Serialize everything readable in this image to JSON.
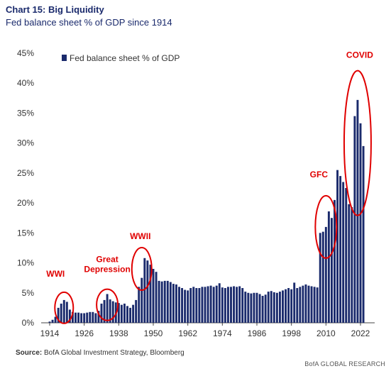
{
  "header": {
    "title": "Chart 15: Big Liquidity",
    "subtitle": "Fed balance sheet % of GDP since 1914"
  },
  "source": {
    "label": "Source:",
    "text": "BofA Global Investment Strategy, Bloomberg"
  },
  "footer": "BofA GLOBAL RESEARCH",
  "colors": {
    "bar": "#1a2a6c",
    "annotation": "#e00000"
  },
  "chart_data": {
    "type": "bar",
    "title": "",
    "xlabel": "",
    "ylabel": "",
    "ylim": [
      0,
      45
    ],
    "yticks": [
      "0%",
      "5%",
      "10%",
      "15%",
      "20%",
      "25%",
      "30%",
      "35%",
      "40%",
      "45%"
    ],
    "xticks": [
      "1914",
      "1926",
      "1938",
      "1950",
      "1962",
      "1974",
      "1986",
      "1998",
      "2010",
      "2022"
    ],
    "legend": {
      "label": "Fed balance sheet % of GDP",
      "position": "top-left"
    },
    "grid": false,
    "series": [
      {
        "name": "Fed balance sheet % of GDP",
        "x": [
          1914,
          1915,
          1916,
          1917,
          1918,
          1919,
          1920,
          1921,
          1922,
          1923,
          1924,
          1925,
          1926,
          1927,
          1928,
          1929,
          1930,
          1931,
          1932,
          1933,
          1934,
          1935,
          1936,
          1937,
          1938,
          1939,
          1940,
          1941,
          1942,
          1943,
          1944,
          1945,
          1946,
          1947,
          1948,
          1949,
          1950,
          1951,
          1952,
          1953,
          1954,
          1955,
          1956,
          1957,
          1958,
          1959,
          1960,
          1961,
          1962,
          1963,
          1964,
          1965,
          1966,
          1967,
          1968,
          1969,
          1970,
          1971,
          1972,
          1973,
          1974,
          1975,
          1976,
          1977,
          1978,
          1979,
          1980,
          1981,
          1982,
          1983,
          1984,
          1985,
          1986,
          1987,
          1988,
          1989,
          1990,
          1991,
          1992,
          1993,
          1994,
          1995,
          1996,
          1997,
          1998,
          1999,
          2000,
          2001,
          2002,
          2003,
          2004,
          2005,
          2006,
          2007,
          2008,
          2009,
          2010,
          2011,
          2012,
          2013,
          2014,
          2015,
          2016,
          2017,
          2018,
          2019,
          2020,
          2021,
          2022,
          2023
        ],
        "values": [
          0.2,
          0.5,
          1.0,
          2.5,
          3.2,
          3.8,
          3.5,
          2.2,
          1.8,
          1.7,
          1.7,
          1.6,
          1.6,
          1.7,
          1.8,
          1.8,
          1.6,
          2.0,
          3.2,
          3.8,
          4.8,
          3.9,
          3.6,
          3.4,
          3.3,
          3.0,
          3.2,
          2.8,
          2.5,
          3.0,
          3.8,
          6.0,
          7.5,
          10.8,
          10.4,
          9.7,
          9.0,
          8.5,
          7.0,
          6.9,
          7.0,
          7.0,
          6.8,
          6.5,
          6.4,
          6.0,
          5.8,
          5.5,
          5.4,
          5.8,
          6.0,
          5.8,
          5.8,
          6.0,
          6.0,
          6.1,
          6.2,
          6.0,
          6.2,
          6.6,
          5.9,
          5.8,
          6.0,
          6.0,
          6.1,
          6.0,
          6.1,
          5.8,
          5.2,
          5.0,
          4.9,
          5.0,
          5.0,
          4.8,
          4.5,
          4.7,
          5.2,
          5.3,
          5.1,
          5.0,
          5.2,
          5.4,
          5.6,
          5.8,
          5.6,
          6.7,
          5.8,
          6.0,
          6.2,
          6.4,
          6.2,
          6.1,
          6.0,
          5.9,
          15.0,
          15.2,
          16.0,
          18.6,
          17.5,
          20.5,
          25.5,
          24.5,
          23.5,
          22.5,
          19.8,
          19.3,
          34.5,
          37.2,
          33.3,
          29.5
        ]
      }
    ],
    "annotations": [
      {
        "label": "WWI",
        "year": 1919,
        "value": 2.5
      },
      {
        "label": "Great",
        "label2": "Depression",
        "year": 1934,
        "value": 3.0
      },
      {
        "label": "WWII",
        "year": 1946,
        "value": 9.0
      },
      {
        "label": "GFC",
        "year": 2010,
        "value": 16.0
      },
      {
        "label": "COVID",
        "year": 2021,
        "value": 30.0
      }
    ]
  }
}
